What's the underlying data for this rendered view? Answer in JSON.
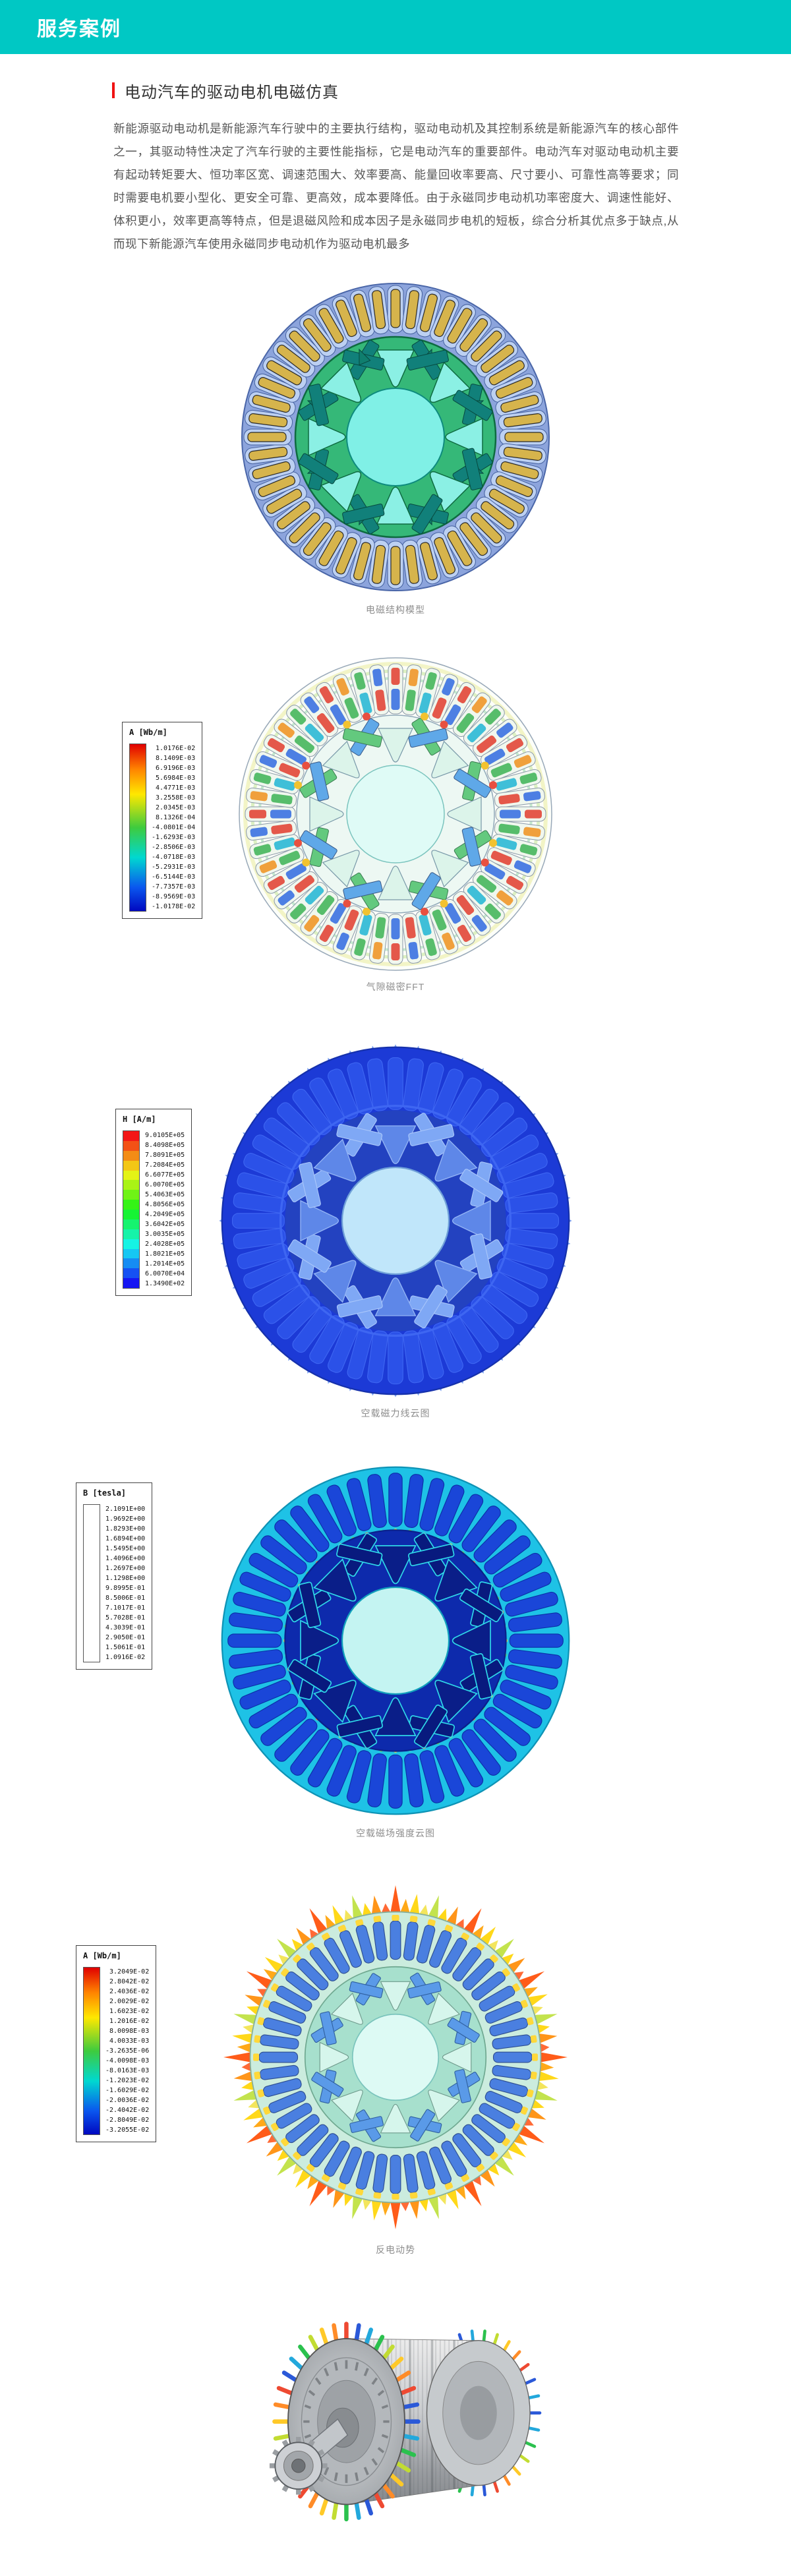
{
  "colors": {
    "banner_teal": "#00c8c4",
    "title_accent_red": "#f01212",
    "caption_gray": "#8e8e8e"
  },
  "header": {
    "title": "服务案例"
  },
  "article": {
    "title": "电动汽车的驱动电机电磁仿真",
    "paragraph": "新能源驱动电动机是新能源汽车行驶中的主要执行结构，驱动电动机及其控制系统是新能源汽车的核心部件之一，其驱动特性决定了汽车行驶的主要性能指标，它是电动汽车的重要部件。电动汽车对驱动电动机主要有起动转矩要大、恒功率区宽、调速范围大、效率要高、能量回收率要高、尺寸要小、可靠性高等要求；同时需要电机要小型化、更安全可靠、更高效，成本要降低。由于永磁同步电动机功率密度大、调速性能好、体积更小，效率更高等特点，但是退磁风险和成本因子是永磁同步电机的短板，综合分析其优点多于缺点,从而现下新能源汽车使用永磁同步电动机作为驱动电机最多"
  },
  "figures": [
    {
      "id": "electromagnetic-structure-model",
      "caption": "电磁结构模型",
      "legend": null
    },
    {
      "id": "airgap-flux-density-fft",
      "caption": "气隙磁密FFT",
      "legend": {
        "header": "A [Wb/m]",
        "type": "gradient",
        "values": [
          "1.0176E-02",
          "8.1409E-03",
          "6.9196E-03",
          "5.6984E-03",
          "4.4771E-03",
          "3.2558E-03",
          "2.0345E-03",
          "8.1326E-04",
          "-4.0801E-04",
          "-1.6293E-03",
          "-2.8506E-03",
          "-4.0718E-03",
          "-5.2931E-03",
          "-6.5144E-03",
          "-7.7357E-03",
          "-8.9569E-03",
          "-1.0178E-02"
        ]
      }
    },
    {
      "id": "no-load-flux-lines",
      "caption": "空载磁力线云图",
      "legend": {
        "header": "H [A/m]",
        "type": "bands",
        "values": [
          "9.0105E+05",
          "8.4098E+05",
          "7.8091E+05",
          "7.2084E+05",
          "6.6077E+05",
          "6.0070E+05",
          "5.4063E+05",
          "4.8056E+05",
          "4.2049E+05",
          "3.6042E+05",
          "3.0035E+05",
          "2.4028E+05",
          "1.8021E+05",
          "1.2014E+05",
          "6.0070E+04",
          "1.3490E+02"
        ]
      }
    },
    {
      "id": "no-load-field-strength",
      "caption": "空载磁场强度云图",
      "legend": {
        "header": "B [tesla]",
        "type": "plain",
        "values": [
          "2.1091E+00",
          "1.9692E+00",
          "1.8293E+00",
          "1.6894E+00",
          "1.5495E+00",
          "1.4096E+00",
          "1.2697E+00",
          "1.1298E+00",
          "9.8995E-01",
          "8.5006E-01",
          "7.1017E-01",
          "5.7028E-01",
          "4.3039E-01",
          "2.9050E-01",
          "1.5061E-01",
          "1.0916E-02"
        ]
      }
    },
    {
      "id": "back-emf",
      "caption": "反电动势",
      "legend": {
        "header": "A [Wb/m]",
        "type": "gradient",
        "values": [
          "3.2049E-02",
          "2.8042E-02",
          "2.4036E-02",
          "2.0029E-02",
          "1.6023E-02",
          "1.2016E-02",
          "8.0098E-03",
          "4.0033E-03",
          "-3.2635E-06",
          "-4.0098E-03",
          "-8.0163E-03",
          "-1.2023E-02",
          "-1.6029E-02",
          "-2.0036E-02",
          "-2.4042E-02",
          "-2.8049E-02",
          "-3.2055E-02"
        ]
      }
    },
    {
      "id": "motor-3d-render",
      "caption": "",
      "legend": null
    }
  ]
}
